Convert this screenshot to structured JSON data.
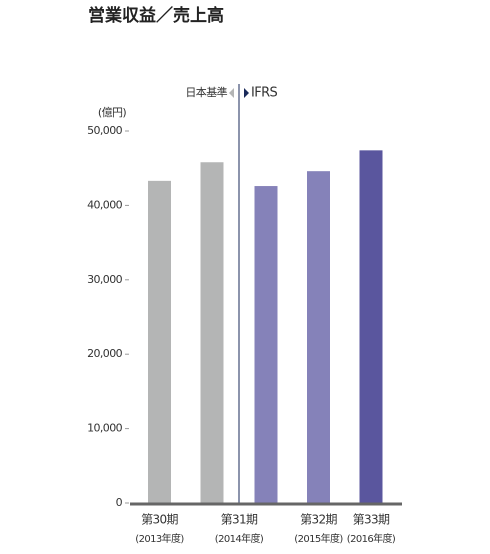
{
  "chart_data": {
    "type": "bar",
    "title": "営業収益／売上高",
    "y_unit": "(億円)",
    "annotations": [
      "日本基準",
      "IFRS"
    ],
    "categories": [
      "第30期",
      "第31期",
      null,
      "第32期",
      "第33期"
    ],
    "sublabels": [
      "(2013年度)",
      "(2014年度)",
      null,
      "(2015年度)",
      "(2016年度)"
    ],
    "values": [
      43300,
      45800,
      42600,
      44600,
      47400
    ],
    "colors": [
      "#b4b5b5",
      "#b4b5b5",
      "#8582b9",
      "#8582b9",
      "#5a569e"
    ],
    "ylim": [
      0,
      50000
    ],
    "yticks": [
      0,
      {
        "value": 10000,
        "label": "10,000"
      },
      {
        "value": 20000,
        "label": "20,000"
      },
      {
        "value": 30000,
        "label": "30,000"
      },
      {
        "value": 40000,
        "label": "40,000"
      },
      {
        "value": 50000,
        "label": "50,000"
      }
    ]
  }
}
